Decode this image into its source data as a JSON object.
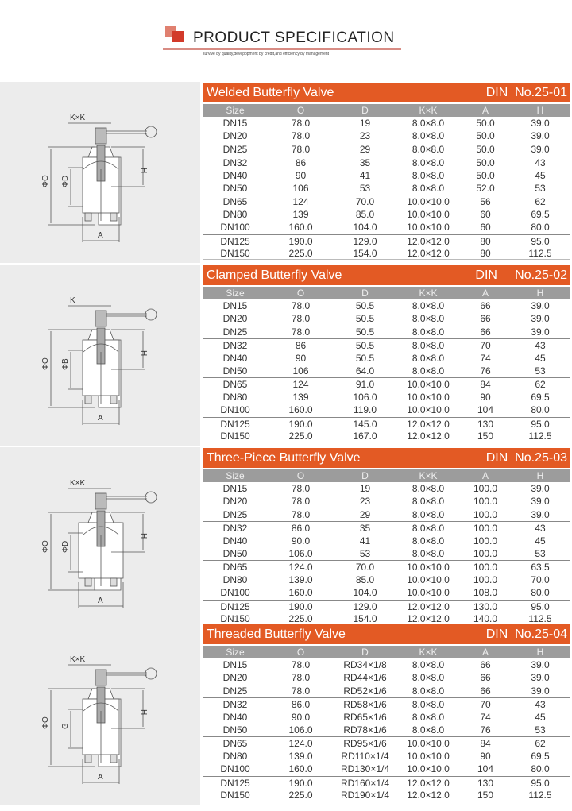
{
  "header": {
    "title": "PRODUCT  SPECIFICATION",
    "subtitle": "survive by quality,devepopment by credit,and efficiency by management"
  },
  "columns": [
    "Size",
    "O",
    "D",
    "K×K",
    "A",
    "H"
  ],
  "sections": [
    {
      "name": "Welded Butterfly Valve",
      "standard": "DIN  No.25-01",
      "diagram_labels": {
        "top": "K×K",
        "outer": "ΦO",
        "inner": "ΦD",
        "height": "H",
        "width": "A"
      },
      "rows": [
        [
          "DN15",
          "78.0",
          "19",
          "8.0×8.0",
          "50.0",
          "39.0"
        ],
        [
          "DN20",
          "78.0",
          "23",
          "8.0×8.0",
          "50.0",
          "39.0"
        ],
        [
          "DN25",
          "78.0",
          "29",
          "8.0×8.0",
          "50.0",
          "39.0"
        ],
        [
          "DN32",
          "86",
          "35",
          "8.0×8.0",
          "50.0",
          "43"
        ],
        [
          "DN40",
          "90",
          "41",
          "8.0×8.0",
          "50.0",
          "45"
        ],
        [
          "DN50",
          "106",
          "53",
          "8.0×8.0",
          "52.0",
          "53"
        ],
        [
          "DN65",
          "124",
          "70.0",
          "10.0×10.0",
          "56",
          "62"
        ],
        [
          "DN80",
          "139",
          "85.0",
          "10.0×10.0",
          "60",
          "69.5"
        ],
        [
          "DN100",
          "160.0",
          "104.0",
          "10.0×10.0",
          "60",
          "80.0"
        ],
        [
          "DN125",
          "190.0",
          "129.0",
          "12.0×12.0",
          "80",
          "95.0"
        ],
        [
          "DN150",
          "225.0",
          "154.0",
          "12.0×12.0",
          "80",
          "112.5"
        ]
      ]
    },
    {
      "name": "Clamped Butterfly Valve",
      "standard": "DIN     No.25-02",
      "diagram_labels": {
        "top": "K",
        "outer": "ΦO",
        "inner": "ΦB",
        "height": "H",
        "width": "A"
      },
      "rows": [
        [
          "DN15",
          "78.0",
          "50.5",
          "8.0×8.0",
          "66",
          "39.0"
        ],
        [
          "DN20",
          "78.0",
          "50.5",
          "8.0×8.0",
          "66",
          "39.0"
        ],
        [
          "DN25",
          "78.0",
          "50.5",
          "8.0×8.0",
          "66",
          "39.0"
        ],
        [
          "DN32",
          "86",
          "50.5",
          "8.0×8.0",
          "70",
          "43"
        ],
        [
          "DN40",
          "90",
          "50.5",
          "8.0×8.0",
          "74",
          "45"
        ],
        [
          "DN50",
          "106",
          "64.0",
          "8.0×8.0",
          "76",
          "53"
        ],
        [
          "DN65",
          "124",
          "91.0",
          "10.0×10.0",
          "84",
          "62"
        ],
        [
          "DN80",
          "139",
          "106.0",
          "10.0×10.0",
          "90",
          "69.5"
        ],
        [
          "DN100",
          "160.0",
          "119.0",
          "10.0×10.0",
          "104",
          "80.0"
        ],
        [
          "DN125",
          "190.0",
          "145.0",
          "12.0×12.0",
          "130",
          "95.0"
        ],
        [
          "DN150",
          "225.0",
          "167.0",
          "12.0×12.0",
          "150",
          "112.5"
        ]
      ]
    },
    {
      "name": "Three-Piece Butterfly Valve",
      "standard": "DIN  No.25-03",
      "diagram_labels": {
        "top": "K×K",
        "outer": "ΦO",
        "inner": "ΦD",
        "height": "H",
        "width": "A"
      },
      "rows": [
        [
          "DN15",
          "78.0",
          "19",
          "8.0×8.0",
          "100.0",
          "39.0"
        ],
        [
          "DN20",
          "78.0",
          "23",
          "8.0×8.0",
          "100.0",
          "39.0"
        ],
        [
          "DN25",
          "78.0",
          "29",
          "8.0×8.0",
          "100.0",
          "39.0"
        ],
        [
          "DN32",
          "86.0",
          "35",
          "8.0×8.0",
          "100.0",
          "43"
        ],
        [
          "DN40",
          "90.0",
          "41",
          "8.0×8.0",
          "100.0",
          "45"
        ],
        [
          "DN50",
          "106.0",
          "53",
          "8.0×8.0",
          "100.0",
          "53"
        ],
        [
          "DN65",
          "124.0",
          "70.0",
          "10.0×10.0",
          "100.0",
          "63.5"
        ],
        [
          "DN80",
          "139.0",
          "85.0",
          "10.0×10.0",
          "100.0",
          "70.0"
        ],
        [
          "DN100",
          "160.0",
          "104.0",
          "10.0×10.0",
          "108.0",
          "80.0"
        ],
        [
          "DN125",
          "190.0",
          "129.0",
          "12.0×12.0",
          "130.0",
          "95.0"
        ],
        [
          "DN150",
          "225.0",
          "154.0",
          "12.0×12.0",
          "140.0",
          "112.5"
        ]
      ]
    },
    {
      "name": "Threaded Butterfly Valve",
      "standard": "DIN  No.25-04",
      "diagram_labels": {
        "top": "K×K",
        "outer": "ΦO",
        "inner": "G",
        "height": "H",
        "width": "A"
      },
      "rows": [
        [
          "DN15",
          "78.0",
          "RD34×1/8",
          "8.0×8.0",
          "66",
          "39.0"
        ],
        [
          "DN20",
          "78.0",
          "RD44×1/6",
          "8.0×8.0",
          "66",
          "39.0"
        ],
        [
          "DN25",
          "78.0",
          "RD52×1/6",
          "8.0×8.0",
          "66",
          "39.0"
        ],
        [
          "DN32",
          "86.0",
          "RD58×1/6",
          "8.0×8.0",
          "70",
          "43"
        ],
        [
          "DN40",
          "90.0",
          "RD65×1/6",
          "8.0×8.0",
          "74",
          "45"
        ],
        [
          "DN50",
          "106.0",
          "RD78×1/6",
          "8.0×8.0",
          "76",
          "53"
        ],
        [
          "DN65",
          "124.0",
          "RD95×1/6",
          "10.0×10.0",
          "84",
          "62"
        ],
        [
          "DN80",
          "139.0",
          "RD110×1/4",
          "10.0×10.0",
          "90",
          "69.5"
        ],
        [
          "DN100",
          "160.0",
          "RD130×1/4",
          "10.0×10.0",
          "104",
          "80.0"
        ],
        [
          "DN125",
          "190.0",
          "RD160×1/4",
          "12.0×12.0",
          "130",
          "95.0"
        ],
        [
          "DN150",
          "225.0",
          "RD190×1/4",
          "12.0×12.0",
          "150",
          "112.5"
        ]
      ]
    }
  ],
  "colors": {
    "title_bar": "#e35a24",
    "header_bar": "#9c9c9c",
    "logo": "#d23a2a"
  }
}
